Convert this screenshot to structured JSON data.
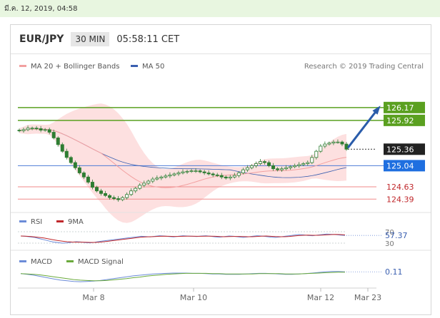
{
  "status_bar": {
    "datetime": "มี.ค. 12, 2019, 04:58"
  },
  "header": {
    "symbol": "EUR/JPY",
    "timeframe": "30 MIN",
    "clock": "05:58:11 CET"
  },
  "credit": "Research © 2019 Trading Central",
  "colors": {
    "support_line": "#4e7bd6",
    "resistance_line": "#5aa020",
    "level_line": "#f08a8a",
    "candle": "#2e7d32",
    "ma20": "#f2a0a0",
    "ma50": "#3a5fb0",
    "band_fill": "#fde0e0",
    "arrow": "#2a5caa",
    "rsi": "#6c8cd8",
    "rsi_ma": "#c0282c",
    "macd": "#6c8cd8",
    "macd_signal": "#6aaa3c"
  },
  "chart_data": [
    {
      "type": "candlestick",
      "legend": [
        "MA 20 + Bollinger Bands",
        "MA 50"
      ],
      "ylim": [
        124.2,
        126.5
      ],
      "price_labels": [
        {
          "value": "126.17",
          "style": "resistance"
        },
        {
          "value": "125.92",
          "style": "resistance"
        },
        {
          "value": "125.36",
          "style": "current"
        },
        {
          "value": "125.04",
          "style": "support"
        },
        {
          "value": "124.63",
          "style": "level"
        },
        {
          "value": "124.39",
          "style": "level"
        }
      ],
      "projection": {
        "from": 125.36,
        "to": 126.17
      },
      "close_series": [
        125.72,
        125.74,
        125.77,
        125.77,
        125.76,
        125.73,
        125.74,
        125.69,
        125.58,
        125.45,
        125.32,
        125.2,
        125.1,
        125,
        124.9,
        124.82,
        124.72,
        124.62,
        124.55,
        124.5,
        124.46,
        124.42,
        124.4,
        124.38,
        124.42,
        124.48,
        124.55,
        124.6,
        124.66,
        124.7,
        124.74,
        124.78,
        124.8,
        124.82,
        124.84,
        124.86,
        124.88,
        124.9,
        124.92,
        124.93,
        124.94,
        124.94,
        124.92,
        124.9,
        124.88,
        124.86,
        124.85,
        124.82,
        124.8,
        124.82,
        124.85,
        124.9,
        124.96,
        125,
        125.04,
        125.08,
        125.12,
        125.1,
        125.04,
        124.98,
        124.96,
        124.98,
        125,
        125.02,
        125.04,
        125.06,
        125.08,
        125.1,
        125.2,
        125.32,
        125.42,
        125.46,
        125.48,
        125.5,
        125.5,
        125.46,
        125.36
      ]
    },
    {
      "type": "line",
      "series": [
        {
          "name": "RSI",
          "values": [
            55,
            54,
            52,
            50,
            46,
            42,
            38,
            34,
            32,
            30,
            31,
            33,
            35,
            34,
            32,
            31,
            33,
            36,
            38,
            40,
            42,
            44,
            46,
            48,
            50,
            52,
            54,
            53,
            52,
            54,
            56,
            55,
            53,
            52,
            54,
            56,
            55,
            54,
            53,
            55,
            56,
            54,
            52,
            51,
            53,
            55,
            54,
            52,
            50,
            52,
            54,
            56,
            55,
            53,
            51,
            50,
            52,
            54,
            56,
            58,
            60,
            59,
            57,
            56,
            58,
            60,
            62,
            61,
            60,
            58,
            57
          ]
        },
        {
          "name": "9MA",
          "values": [
            55,
            54.5,
            53.5,
            52,
            50,
            48,
            45,
            42,
            39,
            37,
            35,
            34,
            33.5,
            33.5,
            33,
            32.5,
            32.5,
            33.5,
            35,
            37,
            39,
            41,
            43,
            45,
            47,
            49,
            51,
            52,
            52.5,
            53,
            54,
            54.5,
            54,
            53.5,
            53.5,
            54,
            54.5,
            54.5,
            54,
            54,
            54.5,
            54.5,
            54,
            53,
            52.5,
            53,
            53.5,
            53.5,
            53,
            52.5,
            52.5,
            53.5,
            54.5,
            55,
            54,
            53,
            52.5,
            52.5,
            53.5,
            55,
            56.5,
            57.5,
            58,
            57.5,
            57.5,
            58,
            59,
            60,
            60.5,
            60,
            59
          ]
        }
      ],
      "ticks": [
        "70",
        "30"
      ],
      "value_label": "57.37",
      "ylim": [
        20,
        80
      ]
    },
    {
      "type": "line",
      "series": [
        {
          "name": "MACD",
          "values": [
            0.05,
            0.03,
            0,
            -0.04,
            -0.08,
            -0.12,
            -0.16,
            -0.18,
            -0.2,
            -0.21,
            -0.2,
            -0.19,
            -0.17,
            -0.14,
            -0.11,
            -0.08,
            -0.05,
            -0.02,
            0,
            0.02,
            0.04,
            0.05,
            0.06,
            0.07,
            0.07,
            0.07,
            0.06,
            0.06,
            0.05,
            0.04,
            0.04,
            0.03,
            0.03,
            0.03,
            0.04,
            0.05,
            0.06,
            0.06,
            0.05,
            0.04,
            0.03,
            0.03,
            0.04,
            0.05,
            0.07,
            0.09,
            0.11,
            0.12,
            0.12,
            0.11
          ]
        },
        {
          "name": "MACD Signal",
          "values": [
            0.05,
            0.04,
            0.03,
            0.01,
            -0.02,
            -0.05,
            -0.08,
            -0.11,
            -0.14,
            -0.16,
            -0.17,
            -0.18,
            -0.18,
            -0.17,
            -0.15,
            -0.13,
            -0.11,
            -0.08,
            -0.06,
            -0.03,
            -0.01,
            0.01,
            0.03,
            0.04,
            0.05,
            0.06,
            0.06,
            0.06,
            0.06,
            0.05,
            0.05,
            0.04,
            0.04,
            0.04,
            0.04,
            0.04,
            0.05,
            0.05,
            0.05,
            0.05,
            0.04,
            0.04,
            0.04,
            0.05,
            0.06,
            0.07,
            0.08,
            0.09,
            0.1,
            0.1
          ]
        }
      ],
      "value_label": "0.11",
      "ylim": [
        -0.3,
        0.3
      ]
    }
  ],
  "x_ticks": [
    "Mar 8",
    "Mar 10",
    "Mar 12",
    "Mar 23"
  ]
}
